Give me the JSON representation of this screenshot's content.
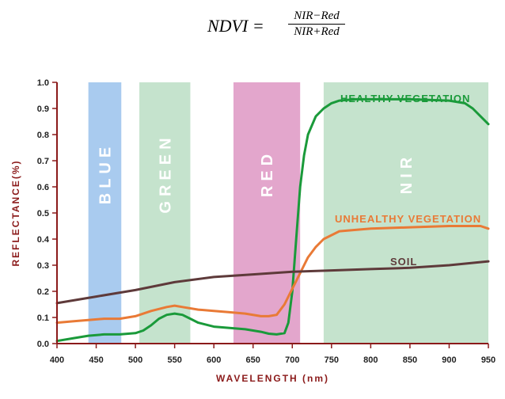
{
  "formula": {
    "lhs": "NDVI =",
    "numerator": "NIR−Red",
    "denominator": "NIR+Red"
  },
  "chart_data": {
    "type": "line",
    "title": "",
    "xlabel": "WAVELENGTH (nm)",
    "ylabel": "REFLECTANCE(%)",
    "xlim": [
      400,
      950
    ],
    "ylim": [
      0.0,
      1.0
    ],
    "x_ticks": [
      "400",
      "450",
      "500",
      "550",
      "600",
      "650",
      "700",
      "750",
      "800",
      "850",
      "900",
      "950"
    ],
    "y_ticks": [
      "0.0",
      "0.1",
      "0.2",
      "0.3",
      "0.4",
      "0.5",
      "0.6",
      "0.7",
      "0.8",
      "0.9",
      "1.0"
    ],
    "grid": false,
    "bands": [
      {
        "name": "BLUE",
        "x_start": 440,
        "x_end": 482,
        "color": "#a9cbef"
      },
      {
        "name": "GREEN",
        "x_start": 505,
        "x_end": 570,
        "color": "#c5e3cd"
      },
      {
        "name": "RED",
        "x_start": 625,
        "x_end": 710,
        "color": "#e3a6cc"
      },
      {
        "name": "NIR",
        "x_start": 740,
        "x_end": 950,
        "color": "#c5e3cd"
      }
    ],
    "series": [
      {
        "name": "HEALTHY VEGETATION",
        "color": "#1a9a3a",
        "x": [
          400,
          420,
          440,
          460,
          480,
          500,
          510,
          520,
          530,
          540,
          550,
          560,
          570,
          580,
          600,
          620,
          640,
          660,
          670,
          680,
          690,
          695,
          700,
          705,
          710,
          715,
          720,
          730,
          740,
          750,
          760,
          780,
          800,
          850,
          900,
          920,
          930,
          940,
          950
        ],
        "y": [
          0.01,
          0.02,
          0.03,
          0.035,
          0.035,
          0.04,
          0.05,
          0.07,
          0.095,
          0.11,
          0.115,
          0.11,
          0.095,
          0.08,
          0.065,
          0.06,
          0.055,
          0.045,
          0.038,
          0.035,
          0.04,
          0.08,
          0.2,
          0.4,
          0.6,
          0.72,
          0.8,
          0.87,
          0.9,
          0.92,
          0.93,
          0.935,
          0.935,
          0.935,
          0.93,
          0.92,
          0.9,
          0.87,
          0.84
        ]
      },
      {
        "name": "UNHEALTHY VEGETATION",
        "color": "#e97a36",
        "x": [
          400,
          420,
          440,
          460,
          480,
          500,
          520,
          540,
          550,
          560,
          580,
          600,
          620,
          640,
          660,
          670,
          680,
          690,
          700,
          710,
          720,
          730,
          740,
          760,
          800,
          850,
          900,
          920,
          940,
          950
        ],
        "y": [
          0.08,
          0.085,
          0.09,
          0.095,
          0.095,
          0.105,
          0.125,
          0.14,
          0.145,
          0.14,
          0.13,
          0.125,
          0.12,
          0.115,
          0.105,
          0.105,
          0.11,
          0.15,
          0.21,
          0.27,
          0.33,
          0.37,
          0.4,
          0.43,
          0.44,
          0.445,
          0.45,
          0.45,
          0.45,
          0.44
        ]
      },
      {
        "name": "SOIL",
        "color": "#5e3a3a",
        "x": [
          400,
          450,
          500,
          550,
          600,
          650,
          700,
          750,
          800,
          850,
          900,
          950
        ],
        "y": [
          0.155,
          0.18,
          0.205,
          0.235,
          0.255,
          0.265,
          0.275,
          0.28,
          0.285,
          0.29,
          0.3,
          0.315
        ]
      }
    ],
    "annotations": [
      {
        "text": "HEALTHY VEGETATION",
        "near": "top-right"
      },
      {
        "text": "UNHEALTHY VEGETATION",
        "near": "middle-right"
      },
      {
        "text": "SOIL",
        "near": "lower-right"
      }
    ],
    "style": {
      "axis_color": "#8b1a1a",
      "tick_text_color": "#222222",
      "band_label_color": "#ffffff"
    }
  }
}
